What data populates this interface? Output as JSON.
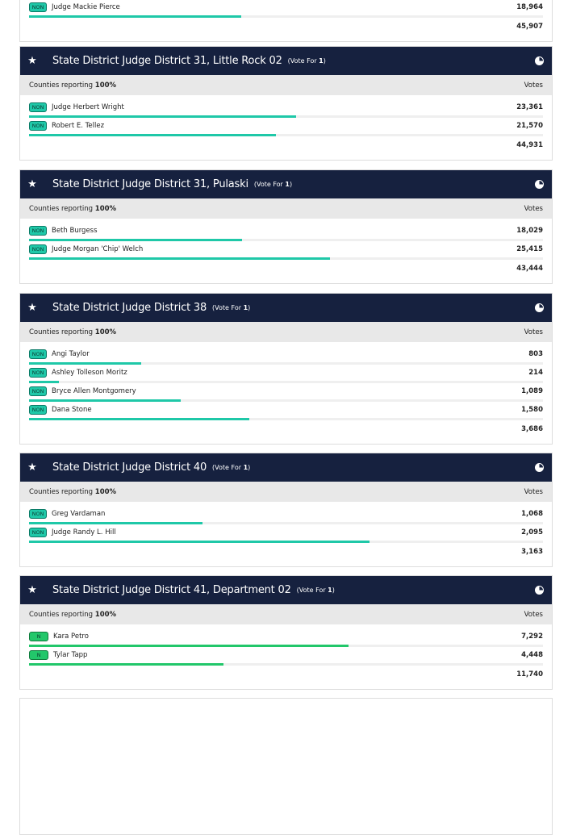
{
  "partial": {
    "badge": "NON",
    "name": "Judge Mackie Pierce",
    "votes": "18,964",
    "votes_num": 18964,
    "total": "45,907",
    "total_num": 45907
  },
  "labels": {
    "counties_reporting": "Counties reporting",
    "votes": "Votes",
    "vote_for": "(Vote For",
    "vote_for_num": "1",
    ")": ")"
  },
  "races": [
    {
      "title": "State District Judge District 31, Little Rock 02",
      "pct": "100%",
      "total": "44,931",
      "total_num": 44931,
      "candidates": [
        {
          "badge": "NON",
          "name": "Judge Herbert Wright",
          "votes": "23,361",
          "n": 23361
        },
        {
          "badge": "NON",
          "name": "Robert E. Tellez",
          "votes": "21,570",
          "n": 21570
        }
      ]
    },
    {
      "title": "State District Judge District 31, Pulaski",
      "pct": "100%",
      "total": "43,444",
      "total_num": 43444,
      "candidates": [
        {
          "badge": "NON",
          "name": "Beth Burgess",
          "votes": "18,029",
          "n": 18029
        },
        {
          "badge": "NON",
          "name": "Judge Morgan 'Chip' Welch",
          "votes": "25,415",
          "n": 25415
        }
      ]
    },
    {
      "title": "State District Judge District 38",
      "pct": "100%",
      "total": "3,686",
      "total_num": 3686,
      "candidates": [
        {
          "badge": "NON",
          "name": "Angi Taylor",
          "votes": "803",
          "n": 803
        },
        {
          "badge": "NON",
          "name": "Ashley Tolleson Moritz",
          "votes": "214",
          "n": 214
        },
        {
          "badge": "NON",
          "name": "Bryce Allen Montgomery",
          "votes": "1,089",
          "n": 1089
        },
        {
          "badge": "NON",
          "name": "Dana Stone",
          "votes": "1,580",
          "n": 1580
        }
      ]
    },
    {
      "title": "State District Judge District 40",
      "pct": "100%",
      "total": "3,163",
      "total_num": 3163,
      "candidates": [
        {
          "badge": "NON",
          "name": "Greg Vardaman",
          "votes": "1,068",
          "n": 1068
        },
        {
          "badge": "NON",
          "name": "Judge Randy L. Hill",
          "votes": "2,095",
          "n": 2095
        }
      ]
    },
    {
      "title": "State District Judge District 41, Department 02",
      "pct": "100%",
      "total": "11,740",
      "total_num": 11740,
      "candidates": [
        {
          "badge": "N",
          "name": "Kara Petro",
          "votes": "7,292",
          "n": 7292
        },
        {
          "badge": "N",
          "name": "Tylar Tapp",
          "votes": "4,448",
          "n": 4448
        }
      ]
    }
  ],
  "colors": {
    "header": "#16213f",
    "nonpartisan": "#1fc8a8",
    "n": "#22c76a"
  }
}
